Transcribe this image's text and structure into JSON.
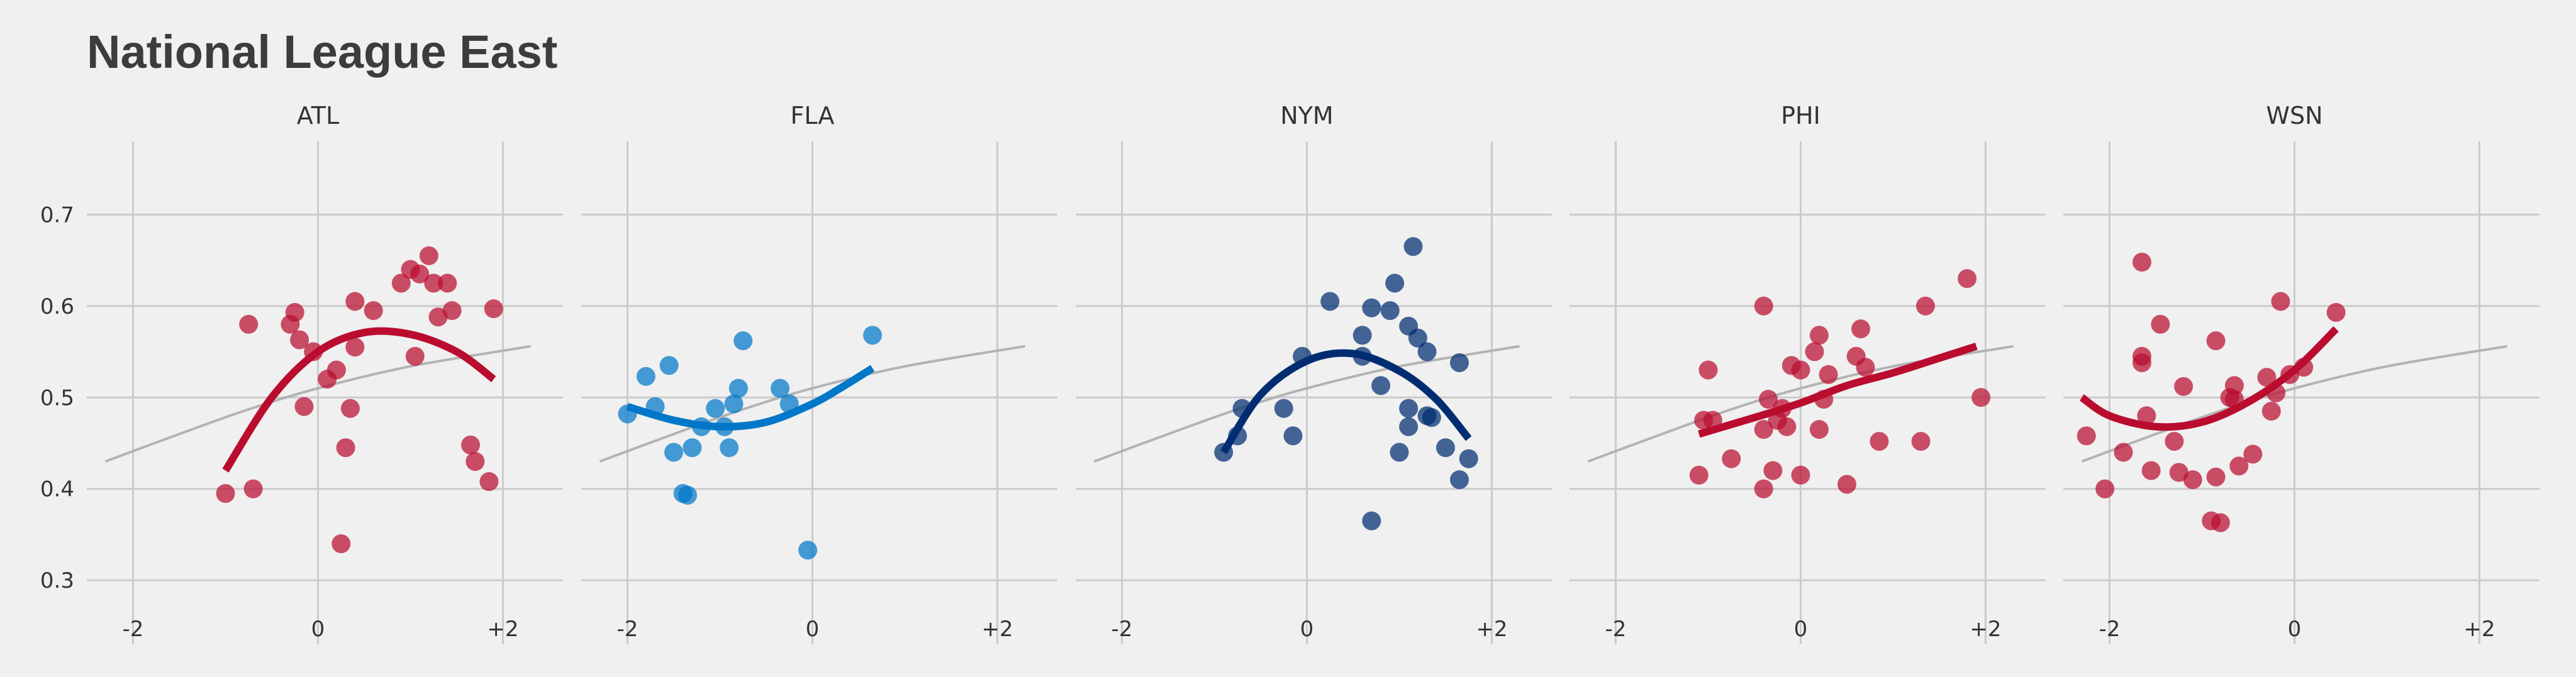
{
  "title": "National League East",
  "chart_data": [
    {
      "type": "scatter",
      "title": "ATL",
      "color": "#ba0c2f",
      "x_ticks": [
        "-2",
        "0",
        "+2"
      ],
      "y_ticks": [
        "0.3",
        "0.4",
        "0.5",
        "0.6",
        "0.7"
      ],
      "xlim": [
        -2.5,
        2.65
      ],
      "ylim": [
        0.23,
        0.78
      ],
      "points": [
        {
          "x": -1.0,
          "y": 0.395
        },
        {
          "x": -0.7,
          "y": 0.4
        },
        {
          "x": -0.75,
          "y": 0.58
        },
        {
          "x": -0.3,
          "y": 0.58
        },
        {
          "x": -0.25,
          "y": 0.593
        },
        {
          "x": -0.2,
          "y": 0.563
        },
        {
          "x": -0.15,
          "y": 0.49
        },
        {
          "x": -0.05,
          "y": 0.55
        },
        {
          "x": 0.1,
          "y": 0.52
        },
        {
          "x": 0.2,
          "y": 0.53
        },
        {
          "x": 0.25,
          "y": 0.34
        },
        {
          "x": 0.3,
          "y": 0.445
        },
        {
          "x": 0.35,
          "y": 0.488
        },
        {
          "x": 0.4,
          "y": 0.555
        },
        {
          "x": 0.4,
          "y": 0.605
        },
        {
          "x": 0.6,
          "y": 0.595
        },
        {
          "x": 0.9,
          "y": 0.625
        },
        {
          "x": 1.0,
          "y": 0.64
        },
        {
          "x": 1.05,
          "y": 0.545
        },
        {
          "x": 1.1,
          "y": 0.635
        },
        {
          "x": 1.2,
          "y": 0.655
        },
        {
          "x": 1.25,
          "y": 0.625
        },
        {
          "x": 1.3,
          "y": 0.588
        },
        {
          "x": 1.4,
          "y": 0.625
        },
        {
          "x": 1.45,
          "y": 0.595
        },
        {
          "x": 1.65,
          "y": 0.448
        },
        {
          "x": 1.7,
          "y": 0.43
        },
        {
          "x": 1.85,
          "y": 0.408
        },
        {
          "x": 1.9,
          "y": 0.597
        }
      ],
      "fit": [
        [
          -1.0,
          0.42
        ],
        [
          -0.5,
          0.5
        ],
        [
          0.0,
          0.55
        ],
        [
          0.5,
          0.571
        ],
        [
          1.0,
          0.569
        ],
        [
          1.5,
          0.55
        ],
        [
          1.9,
          0.52
        ]
      ]
    },
    {
      "type": "scatter",
      "title": "FLA",
      "color": "#0077c8",
      "x_ticks": [
        "-2",
        "0",
        "+2"
      ],
      "y_ticks": [
        "0.3",
        "0.4",
        "0.5",
        "0.6",
        "0.7"
      ],
      "xlim": [
        -2.5,
        2.65
      ],
      "ylim": [
        0.23,
        0.78
      ],
      "points": [
        {
          "x": -2.0,
          "y": 0.482
        },
        {
          "x": -1.8,
          "y": 0.523
        },
        {
          "x": -1.7,
          "y": 0.49
        },
        {
          "x": -1.55,
          "y": 0.535
        },
        {
          "x": -1.5,
          "y": 0.44
        },
        {
          "x": -1.4,
          "y": 0.395
        },
        {
          "x": -1.35,
          "y": 0.393
        },
        {
          "x": -1.3,
          "y": 0.445
        },
        {
          "x": -1.2,
          "y": 0.468
        },
        {
          "x": -1.05,
          "y": 0.488
        },
        {
          "x": -0.95,
          "y": 0.468
        },
        {
          "x": -0.9,
          "y": 0.445
        },
        {
          "x": -0.85,
          "y": 0.493
        },
        {
          "x": -0.8,
          "y": 0.51
        },
        {
          "x": -0.75,
          "y": 0.562
        },
        {
          "x": -0.35,
          "y": 0.51
        },
        {
          "x": -0.25,
          "y": 0.493
        },
        {
          "x": -0.05,
          "y": 0.333
        },
        {
          "x": 0.65,
          "y": 0.568
        }
      ],
      "fit": [
        [
          -2.0,
          0.49
        ],
        [
          -1.5,
          0.475
        ],
        [
          -1.0,
          0.468
        ],
        [
          -0.5,
          0.473
        ],
        [
          0.0,
          0.493
        ],
        [
          0.3,
          0.51
        ],
        [
          0.65,
          0.532
        ]
      ]
    },
    {
      "type": "scatter",
      "title": "NYM",
      "color": "#002d72",
      "x_ticks": [
        "-2",
        "0",
        "+2"
      ],
      "y_ticks": [
        "0.3",
        "0.4",
        "0.5",
        "0.6",
        "0.7"
      ],
      "xlim": [
        -2.5,
        2.65
      ],
      "ylim": [
        0.23,
        0.78
      ],
      "points": [
        {
          "x": -0.9,
          "y": 0.44
        },
        {
          "x": -0.75,
          "y": 0.458
        },
        {
          "x": -0.7,
          "y": 0.488
        },
        {
          "x": -0.25,
          "y": 0.488
        },
        {
          "x": -0.15,
          "y": 0.458
        },
        {
          "x": -0.05,
          "y": 0.545
        },
        {
          "x": 0.25,
          "y": 0.605
        },
        {
          "x": 0.6,
          "y": 0.568
        },
        {
          "x": 0.6,
          "y": 0.545
        },
        {
          "x": 0.7,
          "y": 0.365
        },
        {
          "x": 0.7,
          "y": 0.598
        },
        {
          "x": 0.8,
          "y": 0.513
        },
        {
          "x": 0.9,
          "y": 0.595
        },
        {
          "x": 0.95,
          "y": 0.625
        },
        {
          "x": 1.0,
          "y": 0.44
        },
        {
          "x": 1.1,
          "y": 0.488
        },
        {
          "x": 1.1,
          "y": 0.468
        },
        {
          "x": 1.1,
          "y": 0.578
        },
        {
          "x": 1.15,
          "y": 0.665
        },
        {
          "x": 1.2,
          "y": 0.565
        },
        {
          "x": 1.3,
          "y": 0.55
        },
        {
          "x": 1.3,
          "y": 0.48
        },
        {
          "x": 1.35,
          "y": 0.478
        },
        {
          "x": 1.5,
          "y": 0.445
        },
        {
          "x": 1.65,
          "y": 0.538
        },
        {
          "x": 1.65,
          "y": 0.41
        },
        {
          "x": 1.75,
          "y": 0.433
        }
      ],
      "fit": [
        [
          -0.9,
          0.44
        ],
        [
          -0.5,
          0.503
        ],
        [
          0.0,
          0.54
        ],
        [
          0.5,
          0.548
        ],
        [
          1.0,
          0.529
        ],
        [
          1.4,
          0.498
        ],
        [
          1.75,
          0.455
        ]
      ]
    },
    {
      "type": "scatter",
      "title": "PHI",
      "color": "#ba0c2f",
      "x_ticks": [
        "-2",
        "0",
        "+2"
      ],
      "y_ticks": [
        "0.3",
        "0.4",
        "0.5",
        "0.6",
        "0.7"
      ],
      "xlim": [
        -2.5,
        2.65
      ],
      "ylim": [
        0.23,
        0.78
      ],
      "points": [
        {
          "x": -1.1,
          "y": 0.415
        },
        {
          "x": -1.05,
          "y": 0.475
        },
        {
          "x": -1.0,
          "y": 0.53
        },
        {
          "x": -0.95,
          "y": 0.475
        },
        {
          "x": -0.75,
          "y": 0.433
        },
        {
          "x": -0.4,
          "y": 0.6
        },
        {
          "x": -0.4,
          "y": 0.4
        },
        {
          "x": -0.4,
          "y": 0.465
        },
        {
          "x": -0.35,
          "y": 0.498
        },
        {
          "x": -0.3,
          "y": 0.42
        },
        {
          "x": -0.25,
          "y": 0.475
        },
        {
          "x": -0.2,
          "y": 0.488
        },
        {
          "x": -0.15,
          "y": 0.468
        },
        {
          "x": -0.1,
          "y": 0.535
        },
        {
          "x": 0.0,
          "y": 0.415
        },
        {
          "x": 0.0,
          "y": 0.53
        },
        {
          "x": 0.15,
          "y": 0.55
        },
        {
          "x": 0.2,
          "y": 0.465
        },
        {
          "x": 0.2,
          "y": 0.568
        },
        {
          "x": 0.25,
          "y": 0.498
        },
        {
          "x": 0.3,
          "y": 0.525
        },
        {
          "x": 0.5,
          "y": 0.405
        },
        {
          "x": 0.6,
          "y": 0.545
        },
        {
          "x": 0.65,
          "y": 0.575
        },
        {
          "x": 0.7,
          "y": 0.533
        },
        {
          "x": 0.85,
          "y": 0.452
        },
        {
          "x": 1.3,
          "y": 0.452
        },
        {
          "x": 1.35,
          "y": 0.6
        },
        {
          "x": 1.8,
          "y": 0.63
        },
        {
          "x": 1.95,
          "y": 0.5
        }
      ],
      "fit": [
        [
          -1.1,
          0.46
        ],
        [
          -0.5,
          0.478
        ],
        [
          0.0,
          0.494
        ],
        [
          0.5,
          0.513
        ],
        [
          1.0,
          0.527
        ],
        [
          1.5,
          0.543
        ],
        [
          1.9,
          0.556
        ]
      ]
    },
    {
      "type": "scatter",
      "title": "WSN",
      "color": "#ba0c2f",
      "x_ticks": [
        "-2",
        "0",
        "+2"
      ],
      "y_ticks": [
        "0.3",
        "0.4",
        "0.5",
        "0.6",
        "0.7"
      ],
      "xlim": [
        -2.5,
        2.65
      ],
      "ylim": [
        0.23,
        0.78
      ],
      "points": [
        {
          "x": -2.25,
          "y": 0.458
        },
        {
          "x": -2.05,
          "y": 0.4
        },
        {
          "x": -1.85,
          "y": 0.44
        },
        {
          "x": -1.65,
          "y": 0.648
        },
        {
          "x": -1.65,
          "y": 0.545
        },
        {
          "x": -1.65,
          "y": 0.538
        },
        {
          "x": -1.6,
          "y": 0.48
        },
        {
          "x": -1.55,
          "y": 0.42
        },
        {
          "x": -1.45,
          "y": 0.58
        },
        {
          "x": -1.3,
          "y": 0.452
        },
        {
          "x": -1.25,
          "y": 0.418
        },
        {
          "x": -1.2,
          "y": 0.512
        },
        {
          "x": -1.1,
          "y": 0.41
        },
        {
          "x": -0.9,
          "y": 0.365
        },
        {
          "x": -0.85,
          "y": 0.413
        },
        {
          "x": -0.85,
          "y": 0.562
        },
        {
          "x": -0.8,
          "y": 0.363
        },
        {
          "x": -0.7,
          "y": 0.5
        },
        {
          "x": -0.65,
          "y": 0.513
        },
        {
          "x": -0.65,
          "y": 0.498
        },
        {
          "x": -0.6,
          "y": 0.425
        },
        {
          "x": -0.45,
          "y": 0.438
        },
        {
          "x": -0.3,
          "y": 0.522
        },
        {
          "x": -0.25,
          "y": 0.485
        },
        {
          "x": -0.2,
          "y": 0.505
        },
        {
          "x": -0.15,
          "y": 0.605
        },
        {
          "x": -0.05,
          "y": 0.525
        },
        {
          "x": 0.1,
          "y": 0.533
        },
        {
          "x": 0.45,
          "y": 0.593
        }
      ],
      "fit": [
        [
          -2.3,
          0.5
        ],
        [
          -2.0,
          0.48
        ],
        [
          -1.5,
          0.468
        ],
        [
          -1.0,
          0.473
        ],
        [
          -0.5,
          0.495
        ],
        [
          0.0,
          0.53
        ],
        [
          0.45,
          0.575
        ]
      ]
    }
  ],
  "reference_line": {
    "color": "#b3b3b3",
    "points": [
      [
        -2.3,
        0.43
      ],
      [
        -1.5,
        0.46
      ],
      [
        -0.75,
        0.487
      ],
      [
        0.0,
        0.51
      ],
      [
        1.0,
        0.534
      ],
      [
        2.3,
        0.556
      ]
    ]
  }
}
